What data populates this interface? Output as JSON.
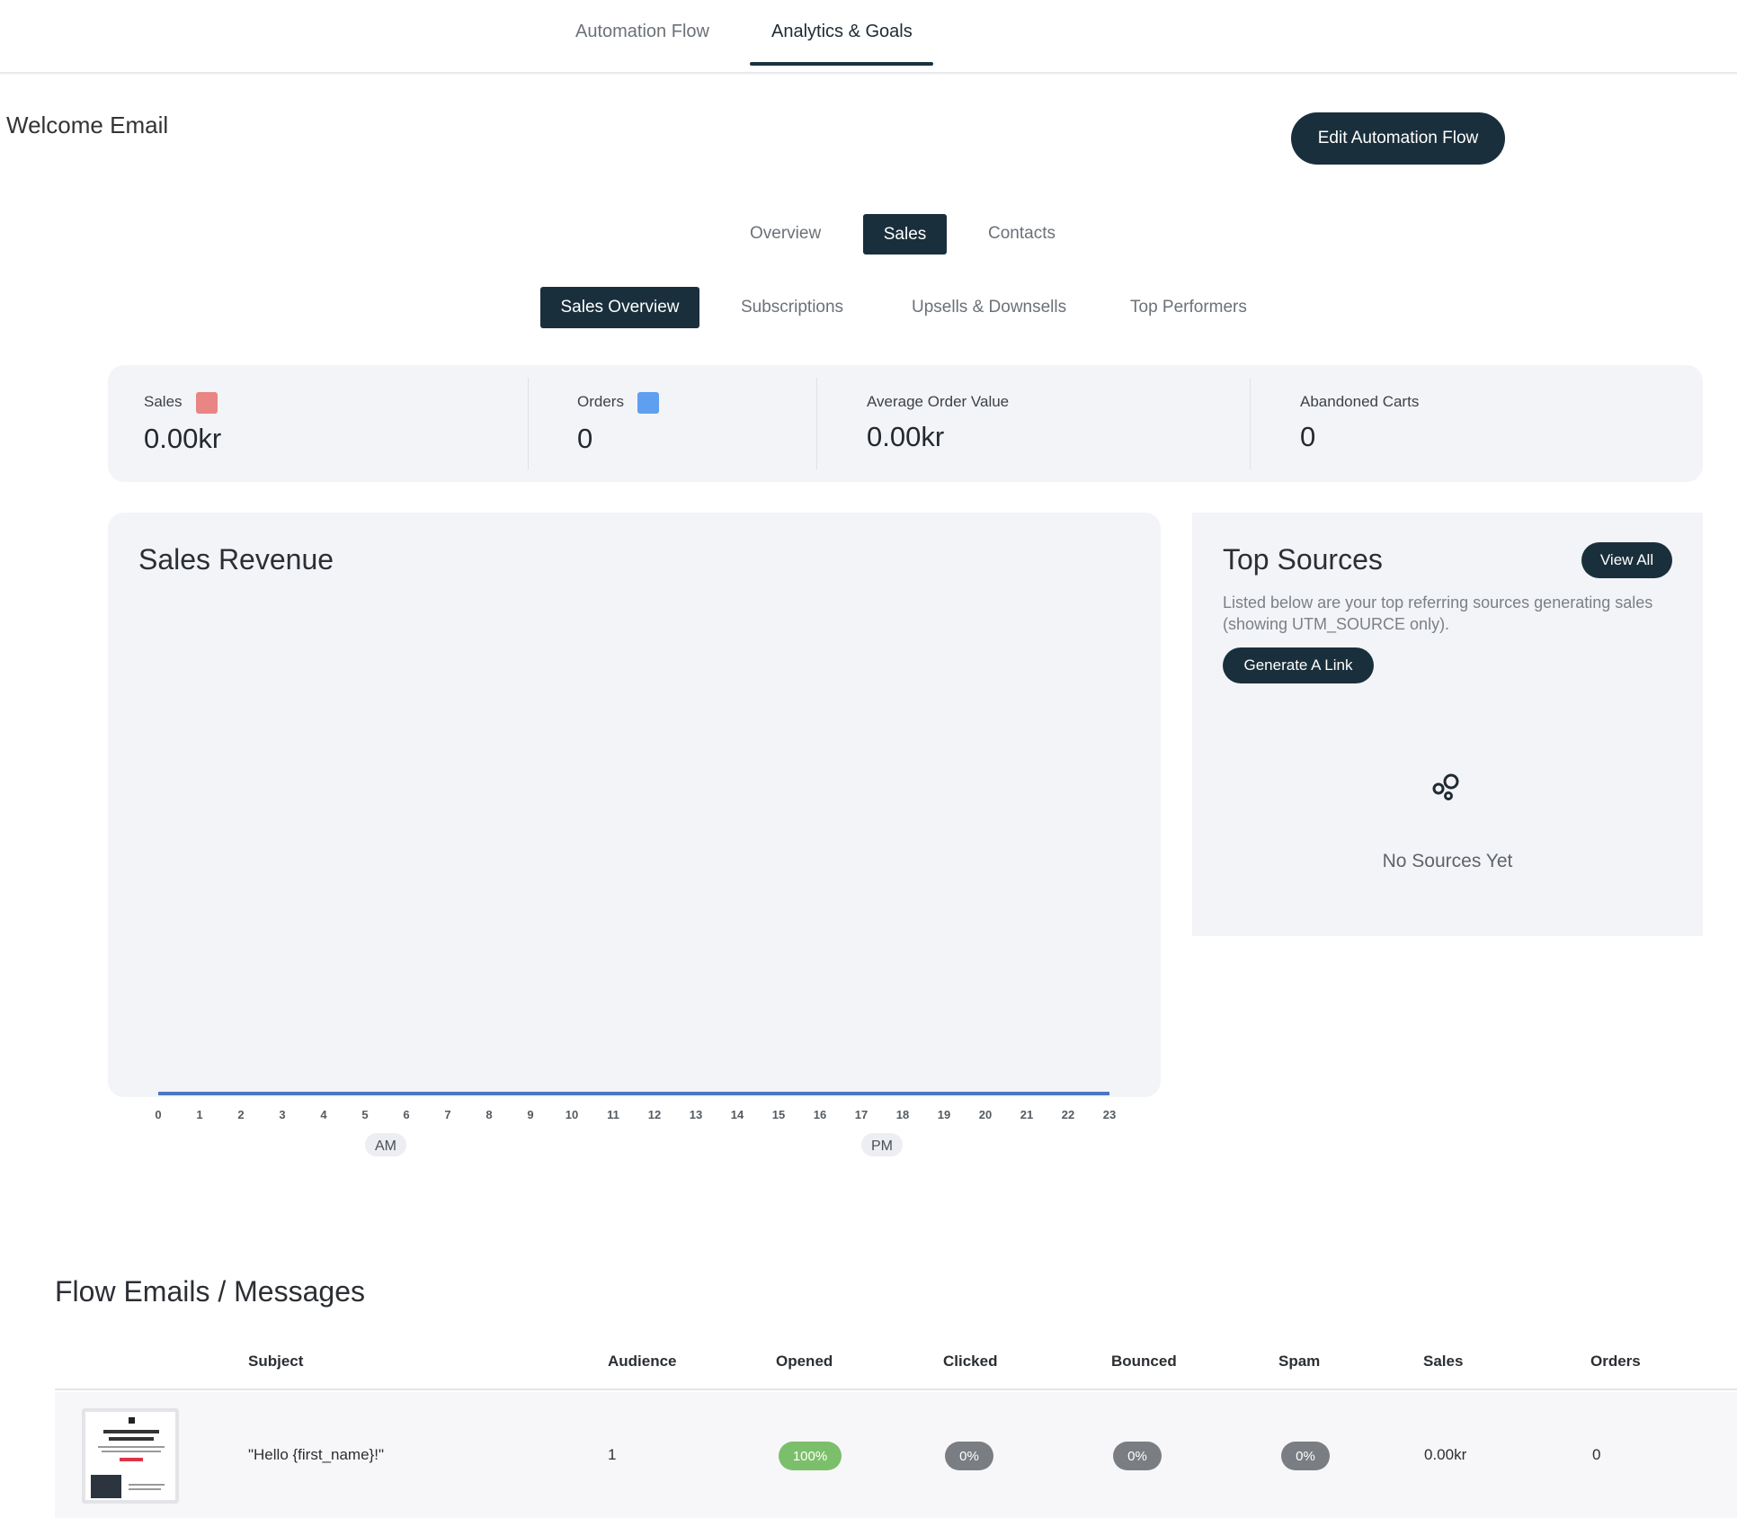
{
  "topnav": {
    "tabs": [
      "Automation Flow",
      "Analytics & Goals"
    ]
  },
  "page": {
    "title": "Welcome Email",
    "edit_button": "Edit Automation Flow"
  },
  "main_tabs": [
    "Overview",
    "Sales",
    "Contacts"
  ],
  "sub_tabs": [
    "Sales Overview",
    "Subscriptions",
    "Upsells & Downsells",
    "Top Performers"
  ],
  "stats": {
    "sales": {
      "label": "Sales",
      "value": "0.00kr",
      "color": "#e98583"
    },
    "orders": {
      "label": "Orders",
      "value": "0",
      "color": "#5e9ff0"
    },
    "aov": {
      "label": "Average Order Value",
      "value": "0.00kr"
    },
    "abandoned": {
      "label": "Abandoned Carts",
      "value": "0"
    }
  },
  "chart": {
    "title": "Sales Revenue",
    "am_label": "AM",
    "pm_label": "PM"
  },
  "chart_data": {
    "type": "area",
    "title": "Sales Revenue",
    "x": [
      0,
      1,
      2,
      3,
      4,
      5,
      6,
      7,
      8,
      9,
      10,
      11,
      12,
      13,
      14,
      15,
      16,
      17,
      18,
      19,
      20,
      21,
      22,
      23
    ],
    "x_tick_labels": [
      "0",
      "1",
      "2",
      "3",
      "4",
      "5",
      "6",
      "7",
      "8",
      "9",
      "10",
      "11",
      "12",
      "13",
      "14",
      "15",
      "16",
      "17",
      "18",
      "19",
      "20",
      "21",
      "22",
      "23"
    ],
    "series": [
      {
        "values": [
          0,
          0,
          0,
          0,
          0,
          0,
          0,
          0,
          0,
          0,
          0,
          0,
          0,
          0,
          0,
          0,
          0,
          0,
          0,
          0,
          0,
          0,
          0,
          0
        ],
        "color": "#4a78c2"
      }
    ],
    "grid": false
  },
  "sources": {
    "title": "Top Sources",
    "view_all": "View All",
    "description": "Listed below are your top referring sources generating sales (showing UTM_SOURCE only).",
    "generate_link": "Generate A Link",
    "empty_icon": "sources-bubbles-icon",
    "empty_text": "No Sources Yet"
  },
  "flow": {
    "title": "Flow Emails / Messages",
    "columns": [
      "Subject",
      "Audience",
      "Opened",
      "Clicked",
      "Bounced",
      "Spam",
      "Sales",
      "Orders"
    ],
    "rows": [
      {
        "subject": "\"Hello {first_name}!\"",
        "audience": "1",
        "opened": "100%",
        "clicked": "0%",
        "bounced": "0%",
        "spam": "0%",
        "sales": "0.00kr",
        "orders": "0"
      }
    ],
    "colors": {
      "opened_pill": "#7cbf6a",
      "zero_pill": "#7a7e82"
    }
  }
}
